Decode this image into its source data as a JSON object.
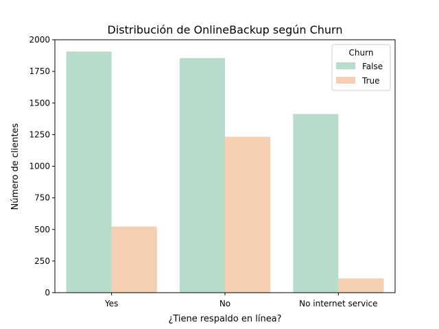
{
  "chart_data": {
    "type": "bar",
    "title": "Distribución de OnlineBackup según Churn",
    "xlabel": "¿Tiene respaldo en línea?",
    "ylabel": "Número de clientes",
    "categories": [
      "Yes",
      "No",
      "No internet service"
    ],
    "series": [
      {
        "name": "False",
        "color": "#b8dccb",
        "values": [
          1907,
          1855,
          1413
        ]
      },
      {
        "name": "True",
        "color": "#f5cfb0",
        "values": [
          523,
          1233,
          113
        ]
      }
    ],
    "ylim": [
      0,
      2000
    ],
    "yticks": [
      0,
      250,
      500,
      750,
      1000,
      1250,
      1500,
      1750,
      2000
    ],
    "legend": {
      "title": "Churn",
      "placement": "top-right"
    },
    "grid": false
  }
}
